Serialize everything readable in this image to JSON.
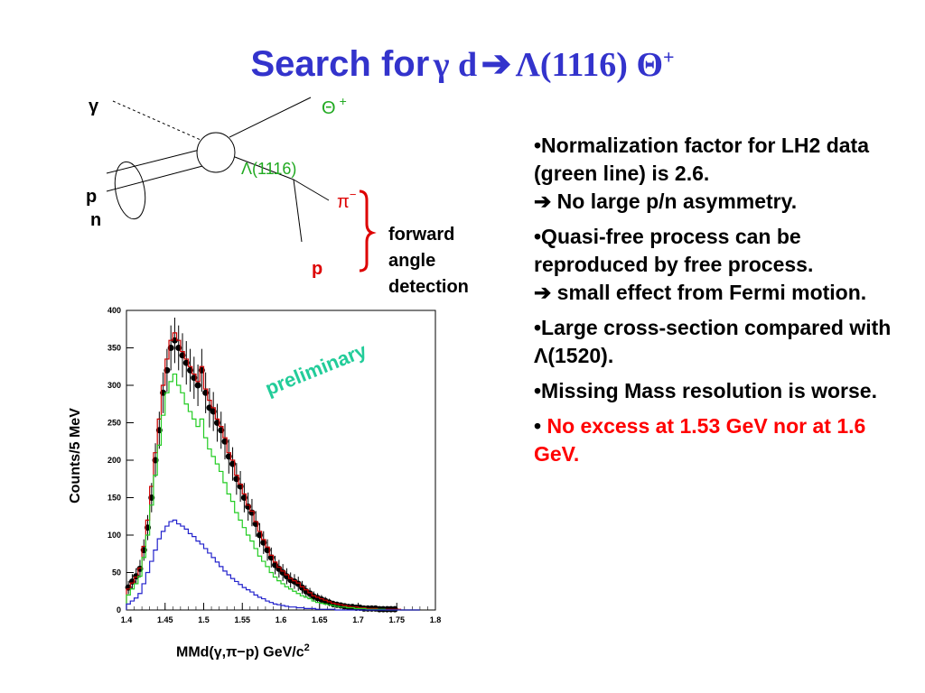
{
  "slide": {
    "title_prefix": "Search for",
    "title_formula": "γ d",
    "title_arrow": "➔",
    "title_lambda": "Λ(1116) Θ",
    "title_sup": "+"
  },
  "diagram": {
    "gamma": "γ",
    "p": "p",
    "n": "n",
    "theta": "Θ",
    "theta_sup": "+",
    "lambda": "Λ(1116)",
    "pi": "π",
    "pi_sup": "−",
    "p_out": "p",
    "forward": [
      "forward",
      "angle",
      "detection"
    ]
  },
  "bullets": [
    {
      "text": "•Normalization factor for LH2 data (green line) is 2.6.",
      "sub": "➔ No large p/n asymmetry."
    },
    {
      "text": "•Quasi-free process can be reproduced by free process.",
      "sub": "➔ small effect from Fermi motion."
    },
    {
      "text": "•Large cross-section compared with Λ(1520).",
      "sub": ""
    },
    {
      "text": "•Missing Mass resolution is worse.",
      "sub": ""
    },
    {
      "text": "No excess at 1.53 GeV nor at 1.6 GeV.",
      "bullet": "•"
    }
  ],
  "chart_data": {
    "type": "line",
    "ylabel": "Counts/5 MeV",
    "xlabel": "MMd(γ,π−p) GeV/c",
    "xlabel_sup": "2",
    "annotation": "preliminary",
    "xlim": [
      1.4,
      1.8
    ],
    "ylim": [
      0,
      400
    ],
    "xticks": [
      "1.4",
      "1.45",
      "1.5",
      "1.55",
      "1.6",
      "1.65",
      "1.7",
      "1.75",
      "1.8"
    ],
    "yticks": [
      "0",
      "50",
      "100",
      "150",
      "200",
      "250",
      "300",
      "350",
      "400"
    ],
    "colors": {
      "data": "#000000",
      "red": "#cc0000",
      "green": "#22cc22",
      "blue": "#2222cc"
    },
    "x": [
      1.4025,
      1.4075,
      1.4125,
      1.4175,
      1.4225,
      1.4275,
      1.4325,
      1.4375,
      1.4425,
      1.4475,
      1.4525,
      1.4575,
      1.4625,
      1.4675,
      1.4725,
      1.4775,
      1.4825,
      1.4875,
      1.4925,
      1.4975,
      1.5025,
      1.5075,
      1.5125,
      1.5175,
      1.5225,
      1.5275,
      1.5325,
      1.5375,
      1.5425,
      1.5475,
      1.5525,
      1.5575,
      1.5625,
      1.5675,
      1.5725,
      1.5775,
      1.5825,
      1.5875,
      1.5925,
      1.5975,
      1.6025,
      1.6075,
      1.6125,
      1.6175,
      1.6225,
      1.6275,
      1.6325,
      1.6375,
      1.6425,
      1.6475,
      1.6525,
      1.6575,
      1.6625,
      1.6675,
      1.6725,
      1.6775,
      1.6825,
      1.6875,
      1.6925,
      1.6975,
      1.7025,
      1.7075,
      1.7125,
      1.7175,
      1.7225,
      1.7275,
      1.7325,
      1.7375,
      1.7425,
      1.7475,
      1.7525,
      1.7575,
      1.7625,
      1.7675,
      1.7725,
      1.7775
    ],
    "series": [
      {
        "name": "",
        "color": "data",
        "values": [
          30,
          38,
          45,
          55,
          80,
          110,
          150,
          200,
          240,
          290,
          320,
          350,
          360,
          350,
          340,
          330,
          320,
          310,
          300,
          320,
          290,
          270,
          265,
          250,
          240,
          225,
          205,
          195,
          175,
          165,
          150,
          138,
          130,
          115,
          100,
          90,
          80,
          70,
          60,
          55,
          50,
          45,
          40,
          38,
          35,
          30,
          25,
          22,
          18,
          16,
          14,
          12,
          10,
          8,
          7,
          6,
          5,
          4,
          4,
          3,
          3,
          2,
          2,
          2,
          2,
          1,
          1,
          1,
          1,
          1,
          0,
          0,
          0,
          0,
          0,
          0
        ]
      },
      {
        "name": "",
        "color": "red",
        "values": [
          28,
          36,
          44,
          56,
          85,
          120,
          165,
          210,
          255,
          300,
          335,
          360,
          370,
          360,
          345,
          335,
          325,
          315,
          305,
          325,
          295,
          280,
          270,
          255,
          245,
          230,
          210,
          200,
          180,
          168,
          155,
          140,
          132,
          118,
          105,
          94,
          84,
          73,
          64,
          57,
          52,
          47,
          42,
          39,
          36,
          31,
          27,
          23,
          19,
          17,
          15,
          13,
          11,
          9,
          8,
          7,
          6,
          5,
          4,
          4,
          3,
          3,
          2,
          2,
          2,
          1,
          1,
          1,
          1,
          1,
          1,
          0,
          0,
          0,
          0,
          0
        ]
      },
      {
        "name": "",
        "color": "green",
        "values": [
          20,
          28,
          35,
          45,
          70,
          100,
          140,
          180,
          220,
          260,
          290,
          305,
          315,
          300,
          290,
          275,
          265,
          255,
          245,
          255,
          230,
          215,
          205,
          195,
          185,
          170,
          155,
          145,
          130,
          120,
          110,
          100,
          92,
          82,
          72,
          65,
          58,
          50,
          44,
          39,
          35,
          31,
          28,
          25,
          22,
          19,
          17,
          15,
          12,
          10,
          9,
          8,
          7,
          6,
          5,
          4,
          4,
          3,
          3,
          2,
          2,
          2,
          1,
          1,
          1,
          1,
          1,
          0,
          0,
          0,
          0,
          0,
          0,
          0,
          0,
          0
        ]
      },
      {
        "name": "",
        "color": "blue",
        "values": [
          8,
          12,
          16,
          22,
          35,
          50,
          65,
          80,
          95,
          105,
          112,
          118,
          120,
          115,
          112,
          108,
          102,
          98,
          92,
          88,
          82,
          76,
          70,
          64,
          58,
          52,
          47,
          42,
          38,
          34,
          30,
          27,
          24,
          20,
          17,
          15,
          12,
          10,
          8,
          7,
          6,
          5,
          4,
          4,
          3,
          3,
          2,
          2,
          2,
          1,
          1,
          1,
          1,
          1,
          0,
          0,
          0,
          0,
          0,
          0,
          0,
          0,
          0,
          0,
          0,
          0,
          0,
          0,
          0,
          0,
          0,
          0,
          0,
          0,
          0,
          0
        ]
      }
    ]
  }
}
